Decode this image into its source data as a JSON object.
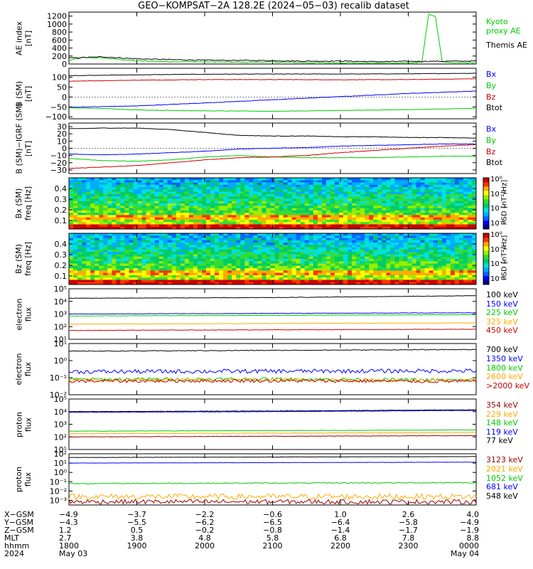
{
  "title": "GEO−KOMPSAT−2A 128.2E (2024−05−03) recalib dataset",
  "colors": {
    "black": "#000000",
    "blue": "#0000ff",
    "green": "#00cc00",
    "red": "#cc0000",
    "orange": "#ffaa00",
    "darkred": "#990000"
  },
  "chart_data": [
    {
      "id": "ae-index",
      "type": "line",
      "ylabel": "AE index\n[nT]",
      "ylim": [
        0,
        1300
      ],
      "yticks": [
        "0",
        "200",
        "400",
        "600",
        "800",
        "1000",
        "1200"
      ],
      "yticks_values": [
        0,
        200,
        400,
        600,
        800,
        1000,
        1200
      ],
      "legend": [
        {
          "text": "Kyoto\nproxy AE",
          "color": "#00cc00"
        },
        {
          "text": "Themis AE",
          "color": "#000000"
        }
      ],
      "series": [
        {
          "name": "Kyoto proxy AE",
          "color": "#00cc00",
          "x": [
            0,
            0.2,
            0.5,
            1,
            1.5,
            2,
            2.5,
            3,
            3.5,
            4,
            4.5,
            5,
            5.2,
            5.3,
            5.4,
            5.5,
            5.6,
            6
          ],
          "y": [
            90,
            160,
            150,
            80,
            60,
            55,
            45,
            50,
            35,
            30,
            25,
            30,
            40,
            1250,
            1180,
            60,
            30,
            35
          ]
        },
        {
          "name": "Themis AE",
          "color": "#000000",
          "x": [
            0,
            0.5,
            1,
            1.5,
            2,
            2.5,
            3,
            3.5,
            4,
            4.5,
            5,
            5.5,
            6
          ],
          "y": [
            150,
            180,
            130,
            110,
            95,
            90,
            85,
            70,
            75,
            60,
            65,
            70,
            75
          ]
        }
      ]
    },
    {
      "id": "b-sm",
      "type": "line",
      "ylabel": "B (SM)\n[nT]",
      "ylim": [
        -110,
        145
      ],
      "yticks": [
        "−100",
        "−50",
        "0",
        "50",
        "100"
      ],
      "yticks_values": [
        -100,
        -50,
        0,
        50,
        100
      ],
      "legend": [
        {
          "text": "Bx",
          "color": "#0000ff"
        },
        {
          "text": "By",
          "color": "#00cc00"
        },
        {
          "text": "Bz",
          "color": "#cc0000"
        },
        {
          "text": "Btot",
          "color": "#000000"
        }
      ],
      "series": [
        {
          "name": "Btot",
          "color": "#000000",
          "x": [
            0,
            1,
            2,
            3,
            4,
            5,
            6
          ],
          "y": [
            108,
            112,
            115,
            116,
            116,
            117,
            120
          ]
        },
        {
          "name": "Bz",
          "color": "#cc0000",
          "x": [
            0,
            1,
            2,
            3,
            4,
            5,
            6
          ],
          "y": [
            80,
            85,
            88,
            88,
            87,
            88,
            92
          ]
        },
        {
          "name": "Bx",
          "color": "#0000ff",
          "x": [
            0,
            1,
            2,
            3,
            4,
            5,
            6
          ],
          "y": [
            -52,
            -45,
            -30,
            -14,
            2,
            18,
            30
          ]
        },
        {
          "name": "By",
          "color": "#00cc00",
          "x": [
            0,
            0.5,
            1,
            1.5,
            2,
            3,
            4,
            5,
            6
          ],
          "y": [
            -55,
            -58,
            -65,
            -68,
            -70,
            -72,
            -68,
            -64,
            -57
          ]
        }
      ]
    },
    {
      "id": "b-sm-igrf",
      "type": "line",
      "ylabel": "B (SM)−IGRF (SM)\n[nT]",
      "ylim": [
        -35,
        35
      ],
      "yticks": [
        "−30",
        "−20",
        "−10",
        "0",
        "10",
        "20",
        "30"
      ],
      "yticks_values": [
        -30,
        -20,
        -10,
        0,
        10,
        20,
        30
      ],
      "legend": [
        {
          "text": "Bx",
          "color": "#0000ff"
        },
        {
          "text": "By",
          "color": "#00cc00"
        },
        {
          "text": "Bz",
          "color": "#cc0000"
        },
        {
          "text": "Btot",
          "color": "#000000"
        }
      ],
      "series": [
        {
          "name": "Btot",
          "color": "#000000",
          "x": [
            0,
            0.5,
            1,
            1.5,
            2,
            2.5,
            3,
            3.5,
            4,
            4.5,
            5,
            5.5,
            6
          ],
          "y": [
            27,
            28,
            28,
            26,
            22,
            18,
            17,
            17,
            16,
            16,
            15,
            15,
            14
          ]
        },
        {
          "name": "Bx",
          "color": "#0000ff",
          "x": [
            0,
            0.5,
            1,
            1.5,
            2,
            2.5,
            3,
            3.5,
            4,
            4.5,
            5,
            5.5,
            6
          ],
          "y": [
            -8,
            -9,
            -8,
            -6,
            -4,
            -1,
            0,
            1,
            3,
            4,
            5,
            6,
            6
          ]
        },
        {
          "name": "By",
          "color": "#00cc00",
          "x": [
            0,
            0.5,
            1,
            1.5,
            2,
            2.5,
            3,
            3.5,
            4,
            4.5,
            5,
            5.5,
            6
          ],
          "y": [
            -14,
            -17,
            -18,
            -16,
            -12,
            -10,
            -12,
            -13,
            -13,
            -13,
            -12,
            -11,
            -11
          ]
        },
        {
          "name": "Bz",
          "color": "#cc0000",
          "x": [
            0,
            0.5,
            1,
            1.5,
            2,
            2.5,
            3,
            3.5,
            4,
            4.5,
            5,
            5.5,
            6
          ],
          "y": [
            -28,
            -26,
            -24,
            -20,
            -16,
            -13,
            -12,
            -10,
            -6,
            -3,
            0,
            3,
            5
          ]
        }
      ]
    },
    {
      "id": "bx-spectrogram",
      "type": "heatmap",
      "ylabel": "Bx (SM)\nfreq [Hz]",
      "yticks": [
        "0.1",
        "0.2",
        "0.3",
        "0.4"
      ],
      "yticks_values": [
        0.1,
        0.2,
        0.3,
        0.4
      ],
      "ylim": [
        0.02,
        0.5
      ],
      "colorbar": {
        "label": "PSD [nT²/Hz]",
        "ticks": [
          "10⁰",
          "10⁻²",
          "10⁻⁴",
          "10⁻⁶"
        ]
      }
    },
    {
      "id": "bz-spectrogram",
      "type": "heatmap",
      "ylabel": "Bz (SM)\nfreq [Hz]",
      "yticks": [
        "0.1",
        "0.2",
        "0.3",
        "0.4"
      ],
      "yticks_values": [
        0.1,
        0.2,
        0.3,
        0.4
      ],
      "ylim": [
        0.02,
        0.5
      ],
      "colorbar": {
        "label": "PSD [nT²/Hz]",
        "ticks": [
          "10⁰",
          "10⁻²",
          "10⁻⁴",
          "10⁻⁶"
        ]
      }
    },
    {
      "id": "electron-flux-low",
      "type": "line",
      "log": true,
      "ylabel": "electron\nflux",
      "ylim_exp": [
        1,
        5
      ],
      "yticks": [
        "10¹",
        "10²",
        "10³",
        "10⁴",
        "10⁵"
      ],
      "yticks_values": [
        1,
        2,
        3,
        4,
        5
      ],
      "legend": [
        {
          "text": "100 keV",
          "color": "#000000"
        },
        {
          "text": "150 keV",
          "color": "#0000ff"
        },
        {
          "text": "225 keV",
          "color": "#00cc00"
        },
        {
          "text": "325 keV",
          "color": "#ffaa00"
        },
        {
          "text": "450 keV",
          "color": "#cc0000"
        }
      ],
      "series": [
        {
          "name": "100 keV",
          "color": "#000000",
          "x": [
            0,
            3,
            6
          ],
          "y": [
            4.25,
            4.3,
            4.45
          ]
        },
        {
          "name": "150 keV",
          "color": "#0000ff",
          "x": [
            0,
            3,
            6
          ],
          "y": [
            3.0,
            3.05,
            3.1
          ]
        },
        {
          "name": "225 keV",
          "color": "#00cc00",
          "x": [
            0,
            3,
            6
          ],
          "y": [
            2.85,
            2.9,
            2.95
          ]
        },
        {
          "name": "325 keV",
          "color": "#ffaa00",
          "x": [
            0,
            3,
            6
          ],
          "y": [
            2.2,
            2.25,
            2.3
          ]
        },
        {
          "name": "450 keV",
          "color": "#cc0000",
          "x": [
            0,
            3,
            6
          ],
          "y": [
            1.7,
            1.75,
            1.8
          ]
        }
      ]
    },
    {
      "id": "electron-flux-high",
      "type": "line",
      "log": true,
      "ylabel": "electron\nflux",
      "ylim_exp": [
        -2,
        1
      ],
      "yticks": [
        "10⁻²",
        "10⁻¹",
        "10⁰",
        "10¹"
      ],
      "yticks_values": [
        -2,
        -1,
        0,
        1
      ],
      "legend": [
        {
          "text": "700 keV",
          "color": "#000000"
        },
        {
          "text": "1350 keV",
          "color": "#0000ff"
        },
        {
          "text": "1800 keV",
          "color": "#00cc00"
        },
        {
          "text": "2600 keV",
          "color": "#ffaa00"
        },
        {
          "text": ">2000 keV",
          "color": "#cc0000"
        }
      ],
      "series": [
        {
          "name": "700 keV",
          "color": "#000000",
          "x": [
            0,
            3,
            6
          ],
          "y": [
            0.55,
            0.6,
            0.65
          ],
          "noise": 0.02
        },
        {
          "name": "1350 keV",
          "color": "#0000ff",
          "x": [
            0,
            3,
            6
          ],
          "y": [
            -0.65,
            -0.62,
            -0.6
          ],
          "noise": 0.12
        },
        {
          "name": "1800 keV",
          "color": "#00cc00",
          "x": [
            0,
            3,
            6
          ],
          "y": [
            -1.1,
            -1.08,
            -1.15
          ],
          "noise": 0.1
        },
        {
          "name": "2600 keV",
          "color": "#ffaa00",
          "x": [
            0,
            3,
            6
          ],
          "y": [
            -1.15,
            -1.12,
            -1.18
          ],
          "noise": 0.1
        },
        {
          "name": ">2000 keV",
          "color": "#cc0000",
          "x": [
            0,
            3,
            6
          ],
          "y": [
            -1.2,
            -1.18,
            -1.22
          ],
          "noise": 0.1
        }
      ]
    },
    {
      "id": "proton-flux-low",
      "type": "line",
      "log": true,
      "ylabel": "proton\nflux",
      "ylim_exp": [
        1,
        5
      ],
      "yticks": [
        "10¹",
        "10²",
        "10³",
        "10⁴",
        "10⁵"
      ],
      "yticks_values": [
        1,
        2,
        3,
        4,
        5
      ],
      "legend": [
        {
          "text": "354 keV",
          "color": "#990000"
        },
        {
          "text": "229 keV",
          "color": "#ffaa00"
        },
        {
          "text": "148 keV",
          "color": "#00cc00"
        },
        {
          "text": "119 keV",
          "color": "#0000ff"
        },
        {
          "text": "77 keV",
          "color": "#000000"
        }
      ],
      "series": [
        {
          "name": "77 keV",
          "color": "#000000",
          "x": [
            0,
            3,
            6
          ],
          "y": [
            4.0,
            4.05,
            4.15
          ]
        },
        {
          "name": "119 keV",
          "color": "#0000ff",
          "x": [
            0,
            3,
            6
          ],
          "y": [
            3.95,
            4.0,
            4.1
          ]
        },
        {
          "name": "148 keV",
          "color": "#00cc00",
          "x": [
            0,
            3,
            6
          ],
          "y": [
            2.45,
            2.5,
            2.55
          ]
        },
        {
          "name": "229 keV",
          "color": "#ffaa00",
          "x": [
            0,
            3,
            6
          ],
          "y": [
            2.25,
            2.3,
            2.35
          ]
        },
        {
          "name": "354 keV",
          "color": "#990000",
          "x": [
            0,
            3,
            6
          ],
          "y": [
            2.0,
            2.05,
            2.1
          ]
        }
      ]
    },
    {
      "id": "proton-flux-high",
      "type": "line",
      "log": true,
      "ylabel": "proton\nflux",
      "ylim_exp": [
        -3.5,
        2
      ],
      "yticks": [
        "10⁻³",
        "10⁻²",
        "10⁻¹",
        "10⁰",
        "10¹",
        "10²"
      ],
      "yticks_values": [
        -3,
        -2,
        -1,
        0,
        1,
        2
      ],
      "legend": [
        {
          "text": "3123 keV",
          "color": "#990000"
        },
        {
          "text": "2021 keV",
          "color": "#ffaa00"
        },
        {
          "text": "1052 keV",
          "color": "#00cc00"
        },
        {
          "text": "681 keV",
          "color": "#0000ff"
        },
        {
          "text": "548 keV",
          "color": "#000000"
        }
      ],
      "series": [
        {
          "name": "548 keV",
          "color": "#000000",
          "x": [
            0,
            3,
            6
          ],
          "y": [
            1.6,
            1.65,
            1.7
          ],
          "noise": 0.01
        },
        {
          "name": "681 keV",
          "color": "#0000ff",
          "x": [
            0,
            3,
            6
          ],
          "y": [
            1.0,
            1.05,
            1.1
          ],
          "noise": 0.01
        },
        {
          "name": "1052 keV",
          "color": "#00cc00",
          "x": [
            0,
            3,
            6
          ],
          "y": [
            -1.2,
            -1.15,
            -1.1
          ],
          "noise": 0.05
        },
        {
          "name": "2021 keV",
          "color": "#ffaa00",
          "x": [
            0,
            3,
            6
          ],
          "y": [
            -2.6,
            -2.6,
            -2.6
          ],
          "noise": 0.3
        },
        {
          "name": "3123 keV",
          "color": "#990000",
          "x": [
            0,
            3,
            6
          ],
          "y": [
            -3.15,
            -3.15,
            -3.15
          ],
          "noise": 0.25
        }
      ]
    }
  ],
  "footer": {
    "labels": [
      "X−GSM",
      "Y−GSM",
      "Z−GSM",
      "MLT",
      "hhmm",
      "2024"
    ],
    "columns": [
      [
        "−4.9",
        "−4.3",
        "1.2",
        "2.7",
        "1800",
        "May 03"
      ],
      [
        "−3.7",
        "−5.5",
        "0.5",
        "3.8",
        "1900",
        ""
      ],
      [
        "−2.2",
        "−6.2",
        "−0.2",
        "4.8",
        "2000",
        ""
      ],
      [
        "−0.6",
        "−6.5",
        "−0.8",
        "5.8",
        "2100",
        ""
      ],
      [
        "1.0",
        "−6.4",
        "−1.4",
        "6.8",
        "2200",
        ""
      ],
      [
        "2.6",
        "−5.8",
        "−1.7",
        "7.8",
        "2300",
        ""
      ],
      [
        "4.0",
        "−4.9",
        "−1.9",
        "8.8",
        "0000",
        "May 04"
      ]
    ]
  }
}
